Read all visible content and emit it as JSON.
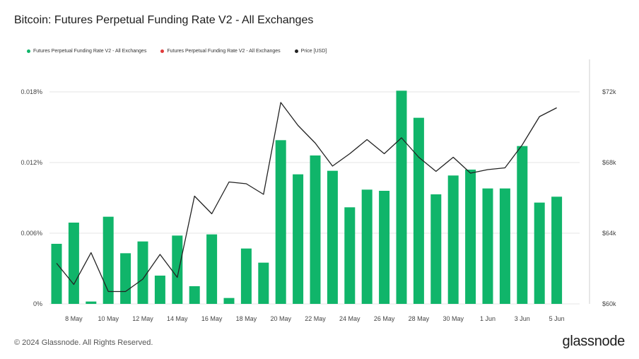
{
  "title": "Bitcoin: Futures Perpetual Funding Rate V2 - All Exchanges",
  "legend": [
    {
      "label": "Futures Perpetual Funding Rate V2 - All Exchanges",
      "color": "#10b56a"
    },
    {
      "label": "Futures Perpetual Funding Rate V2 - All Exchanges",
      "color": "#e03b3b"
    },
    {
      "label": "Price [USD]",
      "color": "#222222"
    }
  ],
  "footer": "© 2024 Glassnode. All Rights Reserved.",
  "brand": "glassnode",
  "chart_data": {
    "type": "bar",
    "x": [
      "7 May",
      "8 May",
      "9 May",
      "10 May",
      "11 May",
      "12 May",
      "13 May",
      "14 May",
      "15 May",
      "16 May",
      "17 May",
      "18 May",
      "19 May",
      "20 May",
      "21 May",
      "22 May",
      "23 May",
      "24 May",
      "25 May",
      "26 May",
      "27 May",
      "28 May",
      "29 May",
      "30 May",
      "31 May",
      "1 Jun",
      "2 Jun",
      "3 Jun",
      "4 Jun",
      "5 Jun"
    ],
    "xtick_labels": [
      "8 May",
      "10 May",
      "12 May",
      "14 May",
      "16 May",
      "18 May",
      "20 May",
      "22 May",
      "24 May",
      "26 May",
      "28 May",
      "30 May",
      "1 Jun",
      "3 Jun",
      "5 Jun"
    ],
    "series": [
      {
        "name": "Futures Perpetual Funding Rate V2 - All Exchanges",
        "axis": "left",
        "color": "#10b56a",
        "values": [
          0.0051,
          0.0069,
          0.0002,
          0.0074,
          0.0043,
          0.0053,
          0.0024,
          0.0058,
          0.0015,
          0.0059,
          0.0005,
          0.0047,
          0.0035,
          0.0139,
          0.011,
          0.0126,
          0.0113,
          0.0082,
          0.0097,
          0.0096,
          0.0181,
          0.0158,
          0.0093,
          0.0109,
          0.0114,
          0.0098,
          0.0098,
          0.0134,
          0.0086,
          0.0091
        ]
      },
      {
        "name": "Price [USD]",
        "axis": "right",
        "type": "line",
        "color": "#222222",
        "values": [
          62300,
          61100,
          62900,
          60700,
          60700,
          61400,
          62800,
          61500,
          66100,
          65100,
          66900,
          66800,
          66200,
          71400,
          70100,
          69100,
          67800,
          68500,
          69300,
          68500,
          69400,
          68300,
          67500,
          68300,
          67400,
          67600,
          67700,
          69000,
          70600,
          71100
        ]
      }
    ],
    "y_left": {
      "ticks": [
        "0%",
        "0.006%",
        "0.012%",
        "0.018%"
      ],
      "lim": [
        0,
        0.018
      ]
    },
    "y_right": {
      "ticks": [
        "$60k",
        "$64k",
        "$68k",
        "$72k"
      ],
      "lim": [
        60000,
        72000
      ]
    },
    "grid": true
  }
}
